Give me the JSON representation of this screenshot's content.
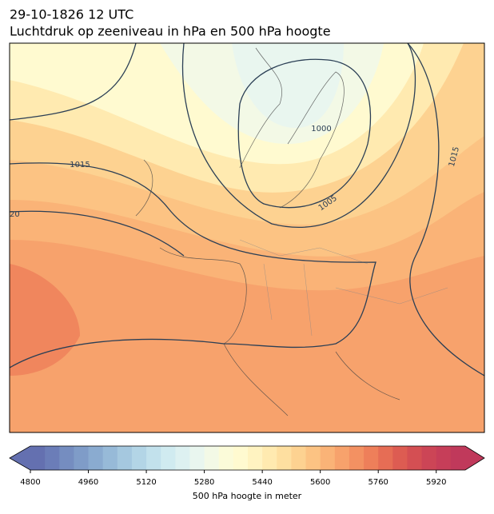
{
  "header": {
    "line1": "29-10-1826 12 UTC",
    "line2": "Luchtdruk op zeeniveau in hPa en 500 hPa hoogte"
  },
  "map": {
    "isobar_labels": [
      "1000",
      "1005",
      "1015",
      "1015",
      "20"
    ]
  },
  "colorbar": {
    "label": "500 hPa hoogte in meter",
    "vmin": 4800,
    "vmax": 6000,
    "step": 40,
    "ticks": [
      4800,
      4960,
      5120,
      5280,
      5440,
      5600,
      5760,
      5920
    ],
    "colors": [
      "#6470b0",
      "#6b7db8",
      "#758dc0",
      "#7f9cc8",
      "#8aabd0",
      "#97bad8",
      "#a5c8df",
      "#b3d5e6",
      "#c2e1ec",
      "#d0ebf0",
      "#ddf1f1",
      "#e9f6ef",
      "#f3f9e6",
      "#fbfbd9",
      "#fffad0",
      "#fff3c1",
      "#ffeab0",
      "#fedfa0",
      "#fdd291",
      "#fcc383",
      "#fab377",
      "#f7a26c",
      "#f39162",
      "#ee7f5a",
      "#e66d55",
      "#dd5c52",
      "#d44f53",
      "#cc4556",
      "#c63e59",
      "#c0395b"
    ]
  }
}
